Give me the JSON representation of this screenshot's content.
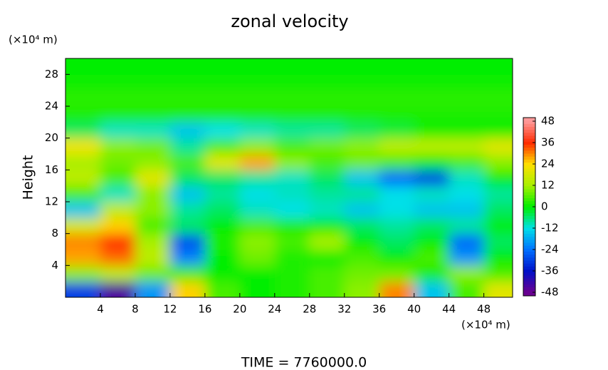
{
  "chart_data": {
    "type": "contour",
    "title": "zonal velocity",
    "y_label": "Height",
    "y_unit": "(×10⁴ m)",
    "x_unit": "(×10⁴ m)",
    "footer": "TIME = 7760000.0",
    "xlim": [
      0,
      51.3
    ],
    "ylim": [
      0,
      30
    ],
    "xticks": [
      4,
      8,
      12,
      16,
      20,
      24,
      28,
      32,
      36,
      40,
      44,
      48
    ],
    "yticks": [
      4,
      8,
      12,
      16,
      20,
      24,
      28
    ],
    "x": [
      2,
      6,
      10,
      14,
      18,
      22,
      26,
      30,
      34,
      38,
      42,
      46,
      50
    ],
    "y": [
      1,
      3,
      5,
      7,
      9,
      11,
      13,
      15,
      17,
      19,
      21,
      23,
      25,
      27,
      29
    ],
    "z": [
      [
        -30,
        -45,
        -20,
        25,
        5,
        0,
        2,
        5,
        10,
        30,
        -15,
        5,
        20
      ],
      [
        10,
        15,
        8,
        5,
        0,
        0,
        2,
        5,
        8,
        8,
        2,
        10,
        5
      ],
      [
        28,
        32,
        15,
        -22,
        0,
        8,
        2,
        0,
        5,
        0,
        5,
        -20,
        0
      ],
      [
        30,
        36,
        12,
        -28,
        2,
        10,
        5,
        12,
        0,
        -5,
        0,
        -25,
        -5
      ],
      [
        18,
        25,
        5,
        -5,
        0,
        5,
        2,
        0,
        -5,
        -8,
        -5,
        -8,
        0
      ],
      [
        -15,
        15,
        10,
        -8,
        -5,
        -10,
        -12,
        -10,
        -15,
        -12,
        -15,
        -15,
        -5
      ],
      [
        5,
        -10,
        10,
        -15,
        -8,
        -12,
        -10,
        -8,
        -8,
        -12,
        -10,
        -12,
        -8
      ],
      [
        15,
        5,
        20,
        -5,
        -5,
        -8,
        -10,
        -5,
        -15,
        -25,
        -30,
        -10,
        0
      ],
      [
        12,
        8,
        10,
        5,
        20,
        28,
        10,
        5,
        8,
        5,
        0,
        5,
        10
      ],
      [
        22,
        10,
        8,
        -8,
        5,
        10,
        5,
        8,
        10,
        15,
        15,
        15,
        20
      ],
      [
        -5,
        -10,
        -10,
        -15,
        -12,
        -10,
        -8,
        -8,
        -5,
        -3,
        0,
        0,
        0
      ],
      [
        2,
        2,
        2,
        2,
        2,
        2,
        2,
        2,
        2,
        2,
        2,
        2,
        2
      ],
      [
        3,
        3,
        3,
        3,
        3,
        3,
        3,
        3,
        3,
        3,
        3,
        3,
        3
      ],
      [
        1,
        1,
        1,
        1,
        1,
        1,
        1,
        1,
        1,
        1,
        1,
        1,
        1
      ],
      [
        0,
        0,
        0,
        0,
        0,
        0,
        0,
        0,
        0,
        0,
        0,
        0,
        0
      ]
    ],
    "zlim": [
      -50,
      50
    ],
    "zticks": [
      -48,
      -36,
      -24,
      -12,
      0,
      12,
      24,
      36,
      48
    ],
    "colors": [
      "#6a0090",
      "#0010c8",
      "#0070ff",
      "#00e0e8",
      "#00ee00",
      "#a8f000",
      "#ffe000",
      "#ff2a00",
      "#ff9a9a"
    ]
  }
}
